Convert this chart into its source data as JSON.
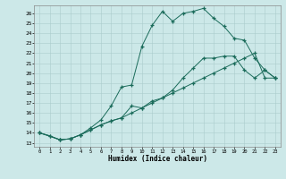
{
  "xlabel": "Humidex (Indice chaleur)",
  "bg_color": "#cce8e8",
  "grid_color": "#aacccc",
  "line_color": "#1a6b5a",
  "xlim": [
    -0.5,
    23.5
  ],
  "ylim": [
    12.6,
    26.8
  ],
  "xticks": [
    0,
    1,
    2,
    3,
    4,
    5,
    6,
    7,
    8,
    9,
    10,
    11,
    12,
    13,
    14,
    15,
    16,
    17,
    18,
    19,
    20,
    21,
    22,
    23
  ],
  "yticks": [
    13,
    14,
    15,
    16,
    17,
    18,
    19,
    20,
    21,
    22,
    23,
    24,
    25,
    26
  ],
  "series": [
    {
      "x": [
        0,
        1,
        2,
        3,
        4,
        5,
        6,
        7,
        8,
        9,
        10,
        11,
        12,
        13,
        14,
        15,
        16,
        17,
        18,
        19,
        20,
        21,
        22,
        23
      ],
      "y": [
        14.0,
        13.7,
        13.3,
        13.4,
        13.8,
        14.3,
        14.8,
        15.2,
        15.5,
        16.0,
        16.5,
        17.0,
        17.5,
        18.0,
        18.5,
        19.0,
        19.5,
        20.0,
        20.5,
        21.0,
        21.5,
        22.0,
        19.5,
        19.5
      ]
    },
    {
      "x": [
        0,
        1,
        2,
        3,
        4,
        5,
        6,
        7,
        8,
        9,
        10,
        11,
        12,
        13,
        14,
        15,
        16,
        17,
        18,
        19,
        20,
        21,
        22,
        23
      ],
      "y": [
        14.0,
        13.7,
        13.3,
        13.4,
        13.8,
        14.3,
        14.8,
        15.2,
        15.5,
        16.7,
        16.5,
        17.2,
        17.5,
        18.3,
        19.5,
        20.5,
        21.5,
        21.5,
        21.7,
        21.7,
        20.3,
        19.5,
        20.3,
        19.5
      ]
    },
    {
      "x": [
        0,
        2,
        3,
        4,
        5,
        6,
        7,
        8,
        9,
        10,
        11,
        12,
        13,
        14,
        15,
        16,
        17,
        18,
        19,
        20,
        21,
        22,
        23
      ],
      "y": [
        14.0,
        13.3,
        13.4,
        13.8,
        14.5,
        15.3,
        16.7,
        18.6,
        18.8,
        22.7,
        24.8,
        26.2,
        25.2,
        26.0,
        26.2,
        26.5,
        25.5,
        24.7,
        23.5,
        23.3,
        21.5,
        20.3,
        19.5
      ]
    }
  ]
}
